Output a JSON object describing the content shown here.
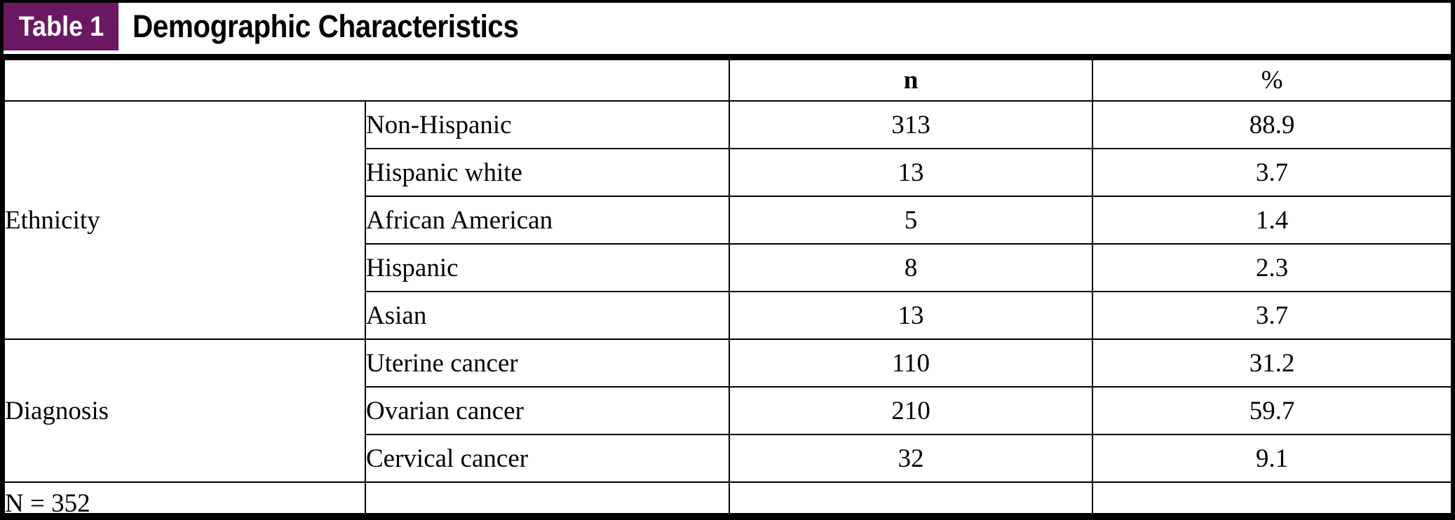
{
  "caption": {
    "badge_label": "Table 1",
    "title": "Demographic Characteristics"
  },
  "colors": {
    "badge_background": "#6B1862",
    "badge_text": "#ffffff",
    "rule_and_borders": "#000000",
    "body_text": "#000000"
  },
  "table": {
    "column_headers": {
      "n": "n",
      "pct": "%"
    },
    "groups": [
      {
        "label": "Ethnicity",
        "rows": [
          {
            "label": "Non-Hispanic",
            "n": "313",
            "pct": "88.9"
          },
          {
            "label": "Hispanic white",
            "n": "13",
            "pct": "3.7"
          },
          {
            "label": "African American",
            "n": "5",
            "pct": "1.4"
          },
          {
            "label": "Hispanic",
            "n": "8",
            "pct": "2.3"
          },
          {
            "label": "Asian",
            "n": "13",
            "pct": "3.7"
          }
        ]
      },
      {
        "label": "Diagnosis",
        "rows": [
          {
            "label": "Uterine cancer",
            "n": "110",
            "pct": "31.2"
          },
          {
            "label": "Ovarian cancer",
            "n": "210",
            "pct": "59.7"
          },
          {
            "label": "Cervical cancer",
            "n": "32",
            "pct": "9.1"
          }
        ]
      }
    ],
    "footer_label": "N = 352"
  }
}
